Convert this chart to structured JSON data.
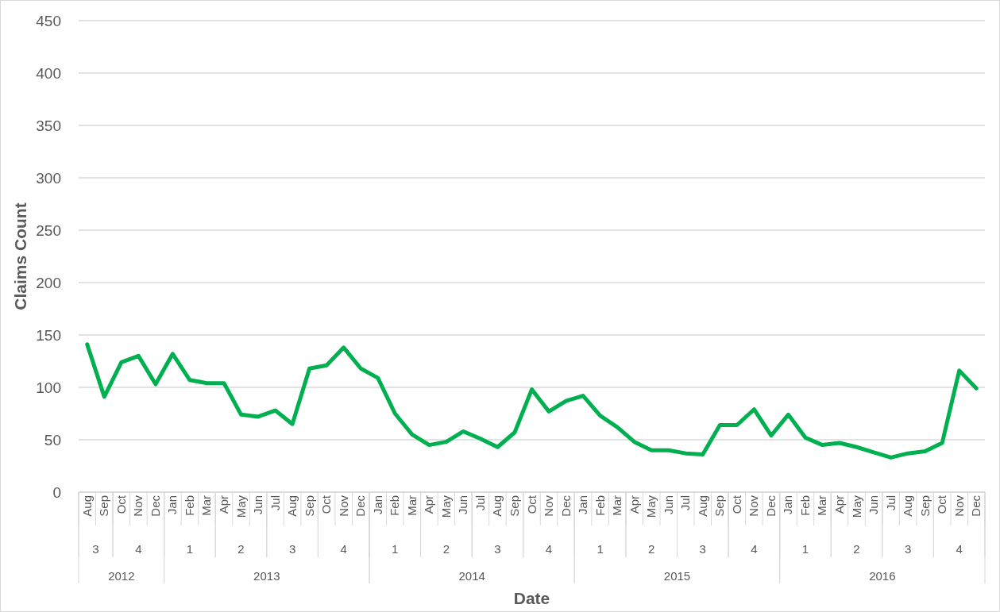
{
  "chart_data": {
    "type": "line",
    "xlabel": "Date",
    "ylabel": "Claims Count",
    "categories": [
      "Aug",
      "Sep",
      "Oct",
      "Nov",
      "Dec",
      "Jan",
      "Feb",
      "Mar",
      "Apr",
      "May",
      "Jun",
      "Jul",
      "Aug",
      "Sep",
      "Oct",
      "Nov",
      "Dec",
      "Jan",
      "Feb",
      "Mar",
      "Apr",
      "May",
      "Jun",
      "Jul",
      "Aug",
      "Sep",
      "Oct",
      "Nov",
      "Dec",
      "Jan",
      "Feb",
      "Mar",
      "Apr",
      "May",
      "Jun",
      "Jul",
      "Aug",
      "Sep",
      "Oct",
      "Nov",
      "Dec",
      "Jan",
      "Feb",
      "Mar",
      "Apr",
      "May",
      "Jun",
      "Jul",
      "Aug",
      "Sep",
      "Oct",
      "Nov",
      "Dec"
    ],
    "annotations": [
      "3",
      "4",
      "1",
      "2",
      "3",
      "4",
      "1",
      "2",
      "3",
      "4",
      "1",
      "2",
      "3",
      "4",
      "1",
      "2",
      "3",
      "4",
      "2012",
      "2013",
      "2014",
      "2015",
      "2016"
    ],
    "series": [
      {
        "color": "#00b050",
        "values": [
          141,
          91,
          124,
          130,
          103,
          132,
          107,
          104,
          104,
          74,
          72,
          78,
          65,
          118,
          121,
          138,
          118,
          109,
          75,
          55,
          45,
          48,
          58,
          51,
          43,
          57,
          98,
          77,
          87,
          92,
          73,
          62,
          48,
          40,
          40,
          37,
          36,
          64,
          64,
          79,
          54,
          74,
          52,
          45,
          47,
          43,
          38,
          33,
          37,
          39,
          47,
          116,
          99
        ]
      }
    ],
    "ylim": [
      0,
      450
    ],
    "yticks": [
      0,
      50,
      100,
      150,
      200,
      250,
      300,
      350,
      400,
      450
    ],
    "grid": "y",
    "marker": "none",
    "line_style": "solid"
  }
}
